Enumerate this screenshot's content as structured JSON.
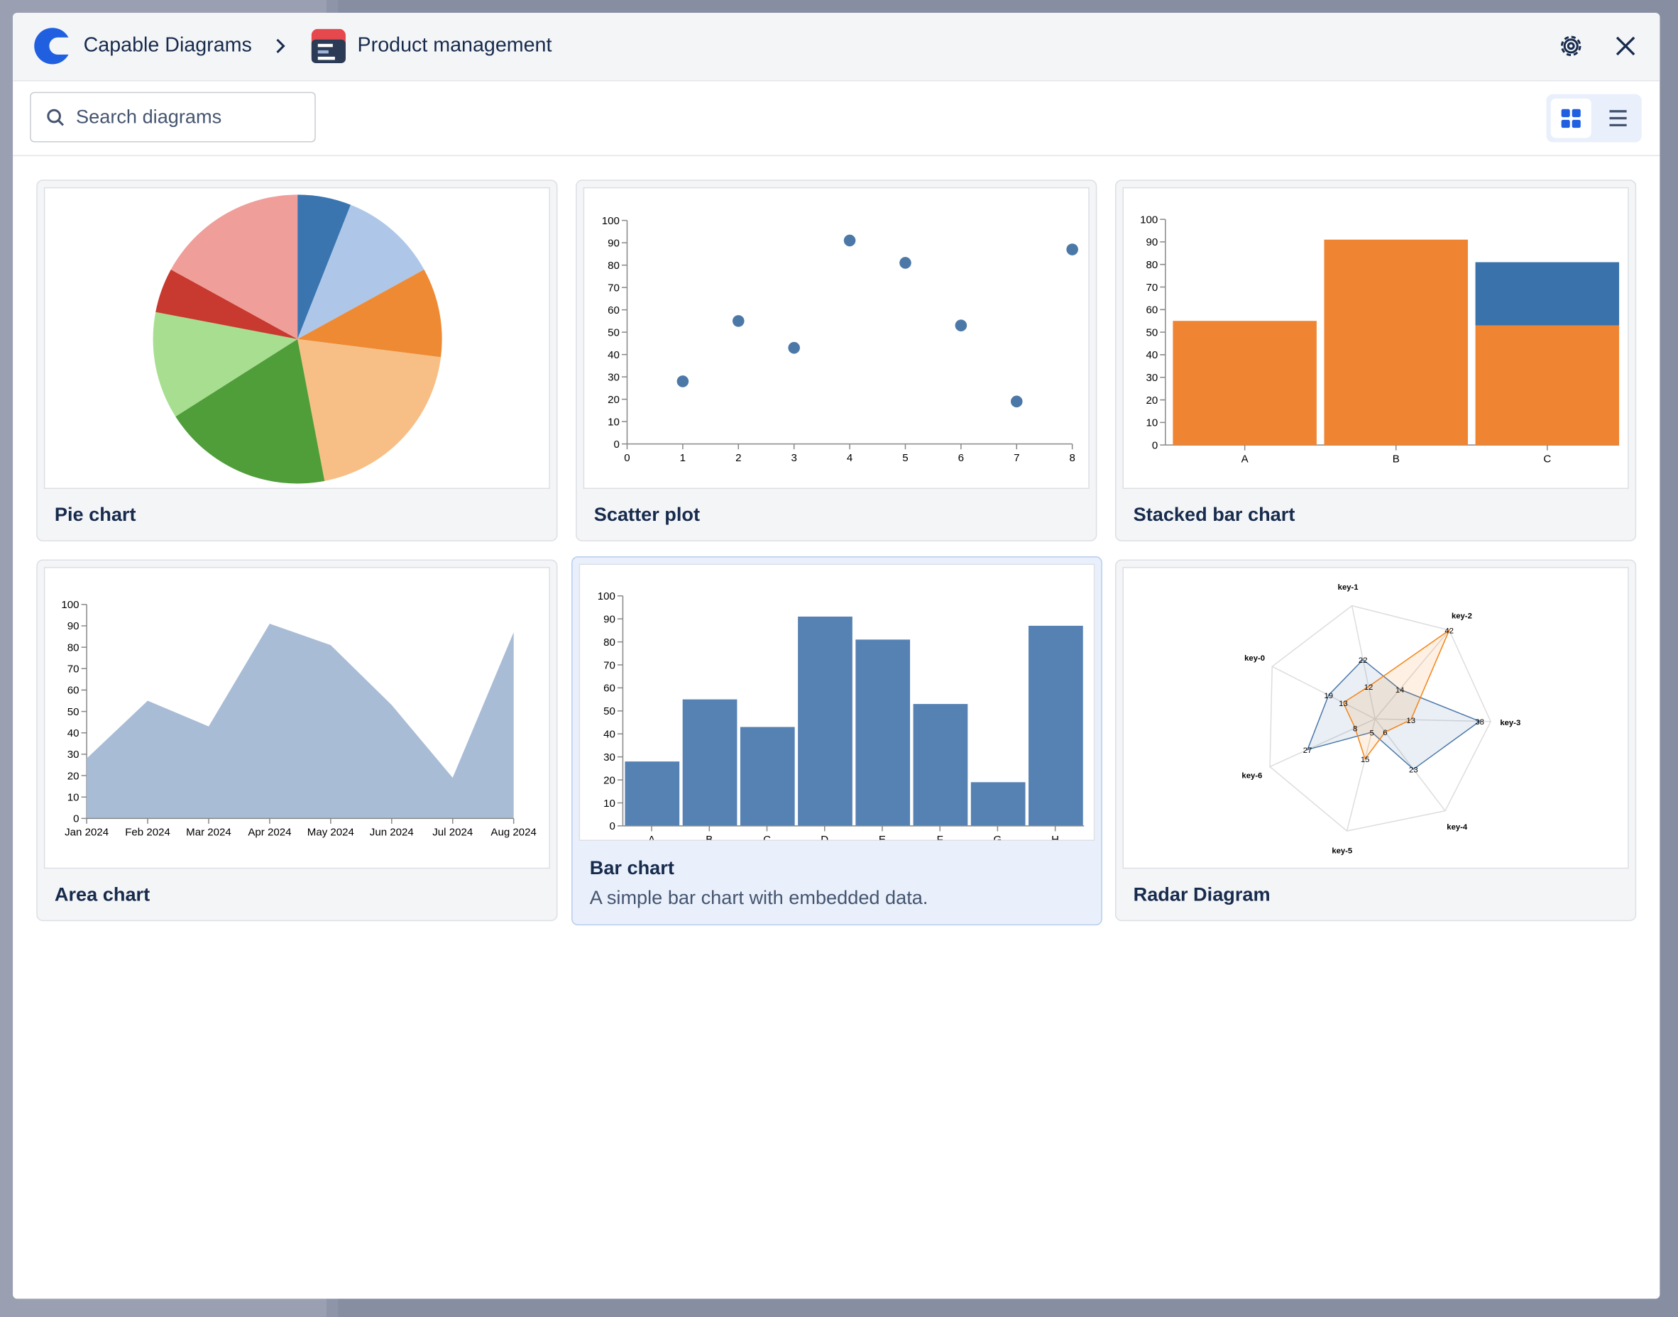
{
  "header": {
    "app": "Capable Diagrams",
    "page": "Product management"
  },
  "search": {
    "placeholder": "Search diagrams"
  },
  "cards": [
    {
      "title": "Pie chart",
      "chart_data": {
        "type": "pie",
        "values": [
          6,
          11,
          10,
          20,
          19,
          12,
          5,
          17
        ],
        "colors": [
          "#3a75b0",
          "#aec7e8",
          "#ef8a34",
          "#f7bf85",
          "#4f9e3a",
          "#a7de90",
          "#c8392f",
          "#f09e9a"
        ]
      }
    },
    {
      "title": "Scatter plot",
      "chart_data": {
        "type": "scatter",
        "x": [
          1,
          2,
          3,
          4,
          5,
          6,
          7,
          8
        ],
        "values": [
          28,
          55,
          43,
          91,
          81,
          53,
          19,
          87
        ],
        "color": "#4c78a8",
        "xlim": [
          0,
          8
        ],
        "xticks": [
          0,
          1,
          2,
          3,
          4,
          5,
          6,
          7,
          8
        ],
        "ylim": [
          0,
          100
        ],
        "yticks": [
          0,
          10,
          20,
          30,
          40,
          50,
          60,
          70,
          80,
          90,
          100
        ]
      }
    },
    {
      "title": "Stacked bar chart",
      "chart_data": {
        "type": "stacked_bar",
        "categories": [
          "A",
          "B",
          "C"
        ],
        "series": [
          {
            "color": "#ef8533",
            "values": [
              55,
              91,
              53
            ]
          },
          {
            "color": "#3a73ab",
            "values": [
              0,
              0,
              28
            ]
          }
        ],
        "ylim": [
          0,
          100
        ],
        "yticks": [
          0,
          10,
          20,
          30,
          40,
          50,
          60,
          70,
          80,
          90,
          100
        ]
      }
    },
    {
      "title": "Area chart",
      "chart_data": {
        "type": "area",
        "categories": [
          "Jan 2024",
          "Feb 2024",
          "Mar 2024",
          "Apr 2024",
          "May 2024",
          "Jun 2024",
          "Jul 2024",
          "Aug 2024"
        ],
        "values": [
          28,
          55,
          43,
          91,
          81,
          53,
          19,
          87
        ],
        "color": "#a8bcd6",
        "ylim": [
          0,
          100
        ],
        "yticks": [
          0,
          10,
          20,
          30,
          40,
          50,
          60,
          70,
          80,
          90,
          100
        ]
      }
    },
    {
      "title": "Bar chart",
      "description": "A simple bar chart with embedded data.",
      "chart_data": {
        "type": "bar",
        "categories": [
          "A",
          "B",
          "C",
          "D",
          "E",
          "F",
          "G",
          "H"
        ],
        "values": [
          28,
          55,
          43,
          91,
          81,
          53,
          19,
          87
        ],
        "color": "#5581b3",
        "ylim": [
          0,
          100
        ],
        "yticks": [
          0,
          10,
          20,
          30,
          40,
          50,
          60,
          70,
          80,
          90,
          100
        ]
      }
    },
    {
      "title": "Radar Diagram",
      "chart_data": {
        "type": "radar",
        "categories": [
          "key-0",
          "key-1",
          "key-2",
          "key-3",
          "key-4",
          "key-5",
          "key-6"
        ],
        "series": [
          {
            "color": "#4c78a8",
            "values": [
              19,
              22,
              14,
              38,
              23,
              5,
              27
            ]
          },
          {
            "color": "#f58518",
            "values": [
              13,
              12,
              42,
              13,
              6,
              15,
              8
            ]
          }
        ],
        "rlim": [
          0,
          42
        ]
      }
    }
  ]
}
